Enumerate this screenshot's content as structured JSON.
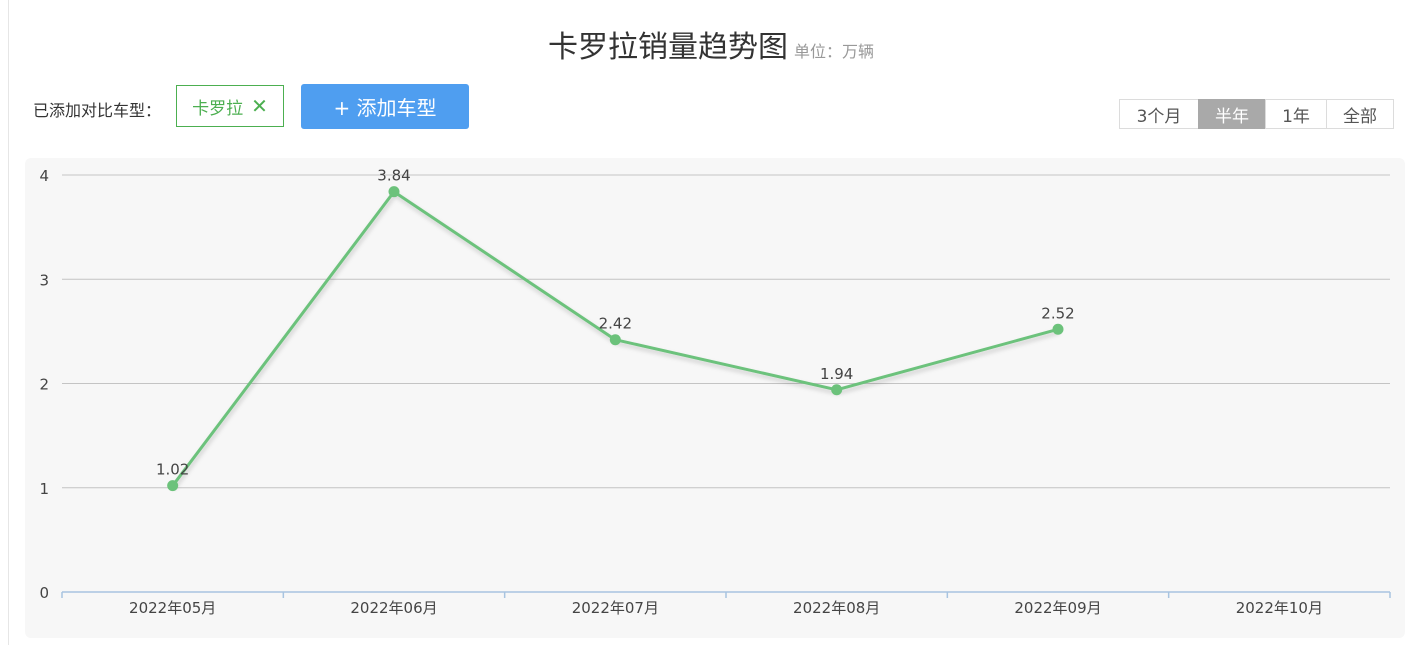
{
  "header": {
    "title": "卡罗拉销量趋势图",
    "unit": "单位：万辆"
  },
  "compare": {
    "label": "已添加对比车型：",
    "tags": [
      {
        "label": "卡罗拉",
        "close_icon": "close-icon",
        "color": "#4caf50"
      }
    ],
    "add_button": "+ 添加车型",
    "add_button_color": "#4f9ef0"
  },
  "range": {
    "options": [
      "3个月",
      "半年",
      "1年",
      "全部"
    ],
    "selected": "半年"
  },
  "chart_data": {
    "type": "line",
    "title": "",
    "xlabel": "",
    "ylabel": "",
    "categories": [
      "2022年05月",
      "2022年06月",
      "2022年07月",
      "2022年08月",
      "2022年09月",
      "2022年10月"
    ],
    "series": [
      {
        "name": "卡罗拉",
        "values": [
          1.02,
          3.84,
          2.42,
          1.94,
          2.52,
          null
        ],
        "color": "#6cc27b"
      }
    ],
    "data_labels": [
      "1.02",
      "3.84",
      "2.42",
      "1.94",
      "2.52",
      ""
    ],
    "ylim": [
      0,
      4
    ],
    "yticks": [
      0,
      1,
      2,
      3,
      4
    ],
    "grid": true,
    "legend": "none"
  }
}
